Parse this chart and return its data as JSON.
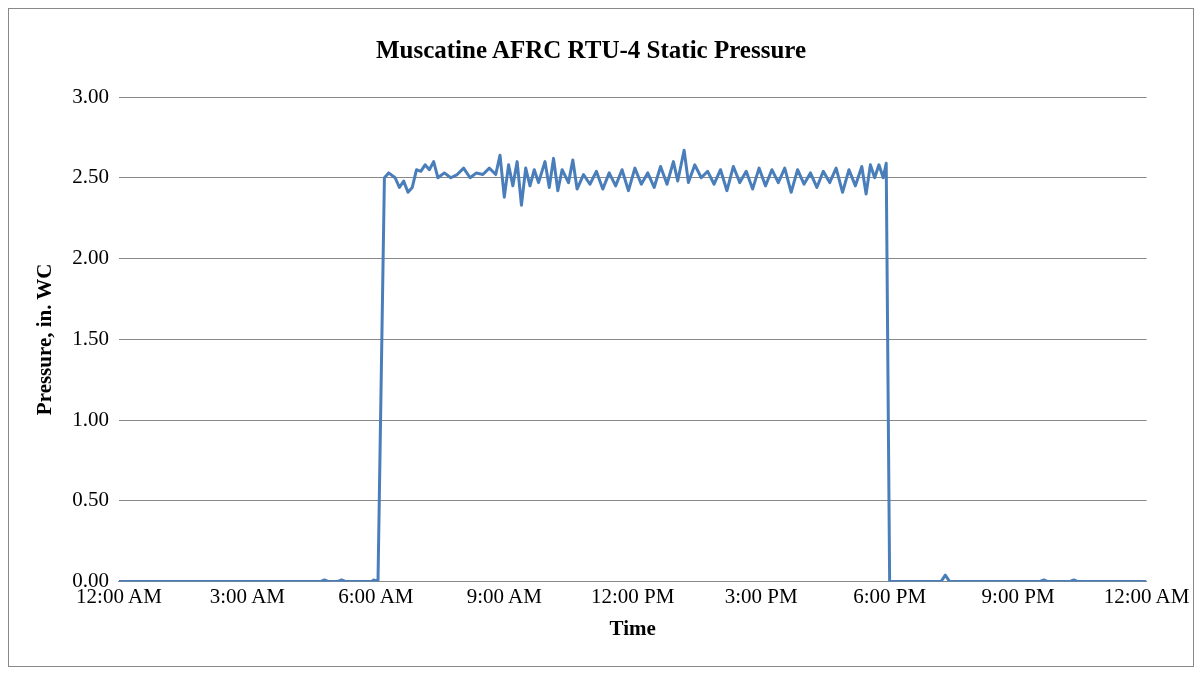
{
  "chart_data": {
    "type": "line",
    "title": "Muscatine AFRC RTU-4 Static Pressure",
    "xlabel": "Time",
    "ylabel": "Pressure, in. WC",
    "xlim": [
      0,
      24
    ],
    "xticks": [
      {
        "value": 0,
        "label": "12:00 AM"
      },
      {
        "value": 3,
        "label": "3:00 AM"
      },
      {
        "value": 6,
        "label": "6:00 AM"
      },
      {
        "value": 9,
        "label": "9:00 AM"
      },
      {
        "value": 12,
        "label": "12:00 PM"
      },
      {
        "value": 15,
        "label": "3:00 PM"
      },
      {
        "value": 18,
        "label": "6:00 PM"
      },
      {
        "value": 21,
        "label": "9:00 PM"
      },
      {
        "value": 24,
        "label": "12:00 AM"
      }
    ],
    "ylim": [
      0,
      3
    ],
    "yticks": [
      {
        "value": 0,
        "label": "0.00"
      },
      {
        "value": 0.5,
        "label": "0.50"
      },
      {
        "value": 1,
        "label": "1.00"
      },
      {
        "value": 1.5,
        "label": "1.50"
      },
      {
        "value": 2,
        "label": "2.00"
      },
      {
        "value": 2.5,
        "label": "2.50"
      },
      {
        "value": 3,
        "label": "3.00"
      }
    ],
    "grid": "y",
    "legend": false,
    "marker": "none",
    "line_style": "solid",
    "series": [
      {
        "color": "#4a7ebb",
        "x": [
          0,
          3,
          4.7,
          4.8,
          4.9,
          5.1,
          5.2,
          5.3,
          5.9,
          5.95,
          6.05,
          6.2,
          6.3,
          6.45,
          6.55,
          6.65,
          6.75,
          6.85,
          6.95,
          7.05,
          7.15,
          7.25,
          7.35,
          7.45,
          7.6,
          7.75,
          7.9,
          8.05,
          8.2,
          8.35,
          8.5,
          8.65,
          8.8,
          8.9,
          9.0,
          9.1,
          9.2,
          9.3,
          9.4,
          9.5,
          9.6,
          9.7,
          9.8,
          9.95,
          10.05,
          10.15,
          10.25,
          10.35,
          10.5,
          10.6,
          10.7,
          10.85,
          11.0,
          11.15,
          11.3,
          11.45,
          11.6,
          11.75,
          11.9,
          12.05,
          12.2,
          12.35,
          12.5,
          12.65,
          12.8,
          12.95,
          13.05,
          13.2,
          13.3,
          13.45,
          13.6,
          13.75,
          13.9,
          14.05,
          14.2,
          14.35,
          14.5,
          14.65,
          14.8,
          14.95,
          15.1,
          15.25,
          15.4,
          15.55,
          15.7,
          15.85,
          16.0,
          16.15,
          16.3,
          16.45,
          16.6,
          16.75,
          16.9,
          17.05,
          17.2,
          17.35,
          17.45,
          17.55,
          17.65,
          17.75,
          17.85,
          17.92,
          18.0,
          19.2,
          19.3,
          19.4,
          21.5,
          21.6,
          21.7,
          22.2,
          22.3,
          22.4,
          24
        ],
        "values": [
          0,
          0,
          0,
          0.01,
          0,
          0,
          0.01,
          0,
          0,
          0.01,
          0,
          2.5,
          2.53,
          2.5,
          2.44,
          2.48,
          2.41,
          2.44,
          2.55,
          2.54,
          2.58,
          2.55,
          2.6,
          2.5,
          2.53,
          2.5,
          2.52,
          2.56,
          2.5,
          2.53,
          2.52,
          2.56,
          2.52,
          2.64,
          2.38,
          2.58,
          2.45,
          2.6,
          2.33,
          2.56,
          2.45,
          2.55,
          2.47,
          2.6,
          2.44,
          2.62,
          2.42,
          2.55,
          2.47,
          2.61,
          2.43,
          2.52,
          2.46,
          2.54,
          2.43,
          2.53,
          2.45,
          2.55,
          2.42,
          2.56,
          2.46,
          2.53,
          2.44,
          2.57,
          2.46,
          2.6,
          2.48,
          2.67,
          2.47,
          2.58,
          2.5,
          2.54,
          2.46,
          2.55,
          2.42,
          2.57,
          2.47,
          2.54,
          2.43,
          2.56,
          2.45,
          2.55,
          2.47,
          2.56,
          2.41,
          2.55,
          2.46,
          2.53,
          2.44,
          2.54,
          2.47,
          2.56,
          2.41,
          2.55,
          2.45,
          2.57,
          2.4,
          2.58,
          2.5,
          2.58,
          2.5,
          2.59,
          0,
          0,
          0.04,
          0,
          0,
          0.01,
          0,
          0,
          0.01,
          0,
          0
        ]
      }
    ]
  }
}
